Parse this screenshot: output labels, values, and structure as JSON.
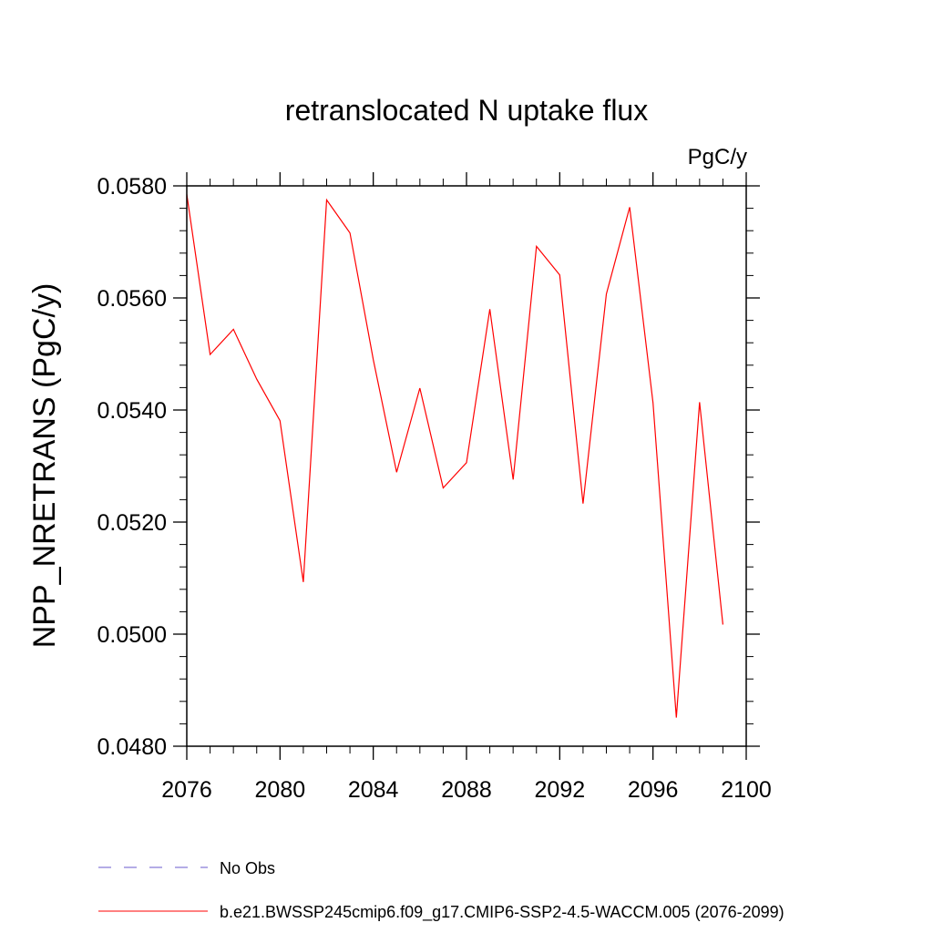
{
  "chart_data": {
    "type": "line",
    "title": "retranslocated N uptake flux",
    "units_label": "PgC/y",
    "ylabel": "NPP_NRETRANS  (PgC/y)",
    "xlabel": "",
    "xlim": [
      2076,
      2100
    ],
    "ylim": [
      0.048,
      0.058
    ],
    "x_ticks": [
      2076,
      2080,
      2084,
      2088,
      2092,
      2096,
      2100
    ],
    "y_ticks": [
      0.048,
      0.05,
      0.052,
      0.054,
      0.056,
      0.058
    ],
    "x_tick_labels": [
      "2076",
      "2080",
      "2084",
      "2088",
      "2092",
      "2096",
      "2100"
    ],
    "y_tick_labels": [
      "0.0480",
      "0.0500",
      "0.0520",
      "0.0540",
      "0.0560",
      "0.0580"
    ],
    "grid": false,
    "legend_position": "bottom",
    "series": [
      {
        "name": "b.e21.BWSSP245cmip6.f09_g17.CMIP6-SSP2-4.5-WACCM.005 (2076-2099)",
        "color": "#ff0000",
        "dash": "solid",
        "x": [
          2076,
          2077,
          2078,
          2079,
          2080,
          2081,
          2082,
          2083,
          2084,
          2085,
          2086,
          2087,
          2088,
          2089,
          2090,
          2091,
          2092,
          2093,
          2094,
          2095,
          2096,
          2097,
          2098,
          2099
        ],
        "values": [
          0.05785,
          0.05499,
          0.05544,
          0.05455,
          0.05381,
          0.05093,
          0.05775,
          0.05716,
          0.0549,
          0.05289,
          0.05439,
          0.05261,
          0.05306,
          0.0558,
          0.05276,
          0.05692,
          0.05641,
          0.05233,
          0.05607,
          0.05762,
          0.05413,
          0.04851,
          0.05414,
          0.05017
        ]
      }
    ],
    "legend": [
      {
        "label": "No Obs",
        "color": "#6a5acd",
        "dash": "dashed"
      },
      {
        "label": "b.e21.BWSSP245cmip6.f09_g17.CMIP6-SSP2-4.5-WACCM.005 (2076-2099)",
        "color": "#ff0000",
        "dash": "solid"
      }
    ]
  }
}
